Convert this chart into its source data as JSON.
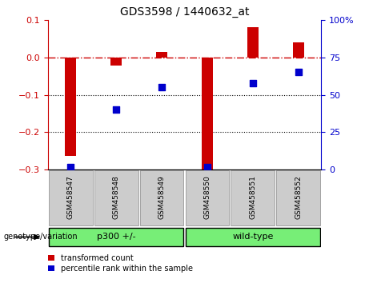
{
  "title": "GDS3598 / 1440632_at",
  "samples": [
    "GSM458547",
    "GSM458548",
    "GSM458549",
    "GSM458550",
    "GSM458551",
    "GSM458552"
  ],
  "red_values": [
    -0.262,
    -0.022,
    0.015,
    -0.3,
    0.08,
    0.04
  ],
  "blue_values": [
    2,
    40,
    55,
    2,
    58,
    65
  ],
  "ylim_left": [
    -0.3,
    0.1
  ],
  "ylim_right": [
    0,
    100
  ],
  "yticks_left": [
    -0.3,
    -0.2,
    -0.1,
    0.0,
    0.1
  ],
  "yticks_right": [
    0,
    25,
    50,
    75,
    100
  ],
  "group_bg_color": "#77ee77",
  "tick_bg_color": "#cccccc",
  "bar_color": "#cc0000",
  "scatter_color": "#0000cc",
  "legend_red_label": "transformed count",
  "legend_blue_label": "percentile rank within the sample",
  "genotype_label": "genotype/variation",
  "group1_label": "p300 +/-",
  "group2_label": "wild-type",
  "group1_indices": [
    0,
    1,
    2
  ],
  "group2_indices": [
    3,
    4,
    5
  ]
}
